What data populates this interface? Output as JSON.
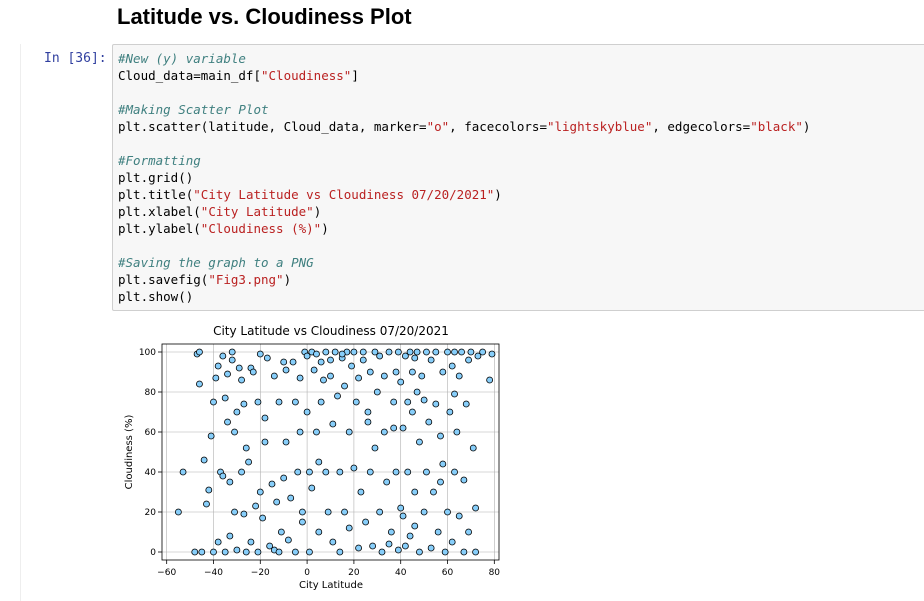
{
  "heading": "Latitude vs. Cloudiness Plot",
  "prompt": "In [36]:",
  "code": {
    "l1": "#New (y) variable",
    "l2a": "Cloud_data=main_df[",
    "l2s": "\"Cloudiness\"",
    "l2b": "]",
    "l3": "#Making Scatter Plot",
    "l4a": "plt.scatter(latitude, Cloud_data, marker=",
    "l4s1": "\"o\"",
    "l4b": ", facecolors=",
    "l4s2": "\"lightskyblue\"",
    "l4c": ", edgecolors=",
    "l4s3": "\"black\"",
    "l4d": ")",
    "l5": "#Formatting",
    "l6": "plt.grid()",
    "l7a": "plt.title(",
    "l7s": "\"City Latitude vs Cloudiness 07/20/2021\"",
    "l7b": ")",
    "l8a": "plt.xlabel(",
    "l8s": "\"City Latitude\"",
    "l8b": ")",
    "l9a": "plt.ylabel(",
    "l9s": "\"Cloudiness (%)\"",
    "l9b": ")",
    "l10": "#Saving the graph to a PNG",
    "l11a": "plt.savefig(",
    "l11s": "\"Fig3.png\"",
    "l11b": ")",
    "l12": "plt.show()"
  },
  "colors": {
    "marker_face": "#87cefa",
    "marker_edge": "#000000",
    "grid": "#b0b0b0"
  },
  "chart_data": {
    "type": "scatter",
    "title": "City Latitude vs Cloudiness 07/20/2021",
    "xlabel": "City Latitude",
    "ylabel": "Cloudiness (%)",
    "xlim": [
      -62,
      82
    ],
    "ylim": [
      -4,
      104
    ],
    "xticks": [
      -60,
      -40,
      -20,
      0,
      20,
      40,
      60,
      80
    ],
    "yticks": [
      0,
      20,
      40,
      60,
      80,
      100
    ],
    "grid": true,
    "points": [
      [
        -55,
        20
      ],
      [
        -53,
        40
      ],
      [
        -47,
        99
      ],
      [
        -46,
        100
      ],
      [
        -46,
        84
      ],
      [
        -45,
        0
      ],
      [
        -44,
        46
      ],
      [
        -43,
        24
      ],
      [
        -42,
        31
      ],
      [
        -41,
        58
      ],
      [
        -40,
        75
      ],
      [
        -40,
        0
      ],
      [
        -39,
        87
      ],
      [
        -38,
        93
      ],
      [
        -38,
        5
      ],
      [
        -37,
        40
      ],
      [
        -36,
        38
      ],
      [
        -36,
        98
      ],
      [
        -35,
        77
      ],
      [
        -35,
        0
      ],
      [
        -34,
        89
      ],
      [
        -34,
        65
      ],
      [
        -33,
        35
      ],
      [
        -33,
        8
      ],
      [
        -32,
        100
      ],
      [
        -32,
        96
      ],
      [
        -31,
        60
      ],
      [
        -31,
        20
      ],
      [
        -30,
        70
      ],
      [
        -30,
        1
      ],
      [
        -29,
        92
      ],
      [
        -28,
        86
      ],
      [
        -28,
        40
      ],
      [
        -27,
        19
      ],
      [
        -27,
        74
      ],
      [
        -26,
        0
      ],
      [
        -25,
        45
      ],
      [
        -24,
        92
      ],
      [
        -24,
        5
      ],
      [
        -23,
        90
      ],
      [
        -22,
        23
      ],
      [
        -21,
        75
      ],
      [
        -21,
        0
      ],
      [
        -20,
        30
      ],
      [
        -19,
        17
      ],
      [
        -18,
        55
      ],
      [
        -18,
        67
      ],
      [
        -17,
        97
      ],
      [
        -16,
        3
      ],
      [
        -15,
        34
      ],
      [
        -14,
        88
      ],
      [
        -14,
        1
      ],
      [
        -13,
        25
      ],
      [
        -12,
        75
      ],
      [
        -12,
        0
      ],
      [
        -11,
        10
      ],
      [
        -10,
        37
      ],
      [
        -9,
        91
      ],
      [
        -9,
        55
      ],
      [
        -8,
        6
      ],
      [
        -7,
        27
      ],
      [
        -6,
        95
      ],
      [
        -5,
        75
      ],
      [
        -5,
        0
      ],
      [
        -4,
        40
      ],
      [
        -3,
        60
      ],
      [
        -3,
        87
      ],
      [
        -2,
        20
      ],
      [
        -1,
        100
      ],
      [
        0,
        98
      ],
      [
        0,
        70
      ],
      [
        1,
        40
      ],
      [
        1,
        0
      ],
      [
        2,
        100
      ],
      [
        2,
        32
      ],
      [
        3,
        91
      ],
      [
        4,
        99
      ],
      [
        4,
        60
      ],
      [
        5,
        10
      ],
      [
        6,
        95
      ],
      [
        6,
        75
      ],
      [
        7,
        86
      ],
      [
        8,
        40
      ],
      [
        8,
        100
      ],
      [
        9,
        20
      ],
      [
        10,
        96
      ],
      [
        10,
        88
      ],
      [
        11,
        64
      ],
      [
        11,
        5
      ],
      [
        12,
        100
      ],
      [
        13,
        78
      ],
      [
        14,
        40
      ],
      [
        14,
        0
      ],
      [
        15,
        97
      ],
      [
        16,
        83
      ],
      [
        16,
        20
      ],
      [
        17,
        100
      ],
      [
        18,
        60
      ],
      [
        18,
        12
      ],
      [
        19,
        93
      ],
      [
        20,
        42
      ],
      [
        20,
        100
      ],
      [
        21,
        75
      ],
      [
        22,
        2
      ],
      [
        22,
        87
      ],
      [
        23,
        30
      ],
      [
        24,
        96
      ],
      [
        24,
        100
      ],
      [
        25,
        15
      ],
      [
        26,
        70
      ],
      [
        27,
        90
      ],
      [
        27,
        40
      ],
      [
        28,
        3
      ],
      [
        29,
        100
      ],
      [
        30,
        80
      ],
      [
        31,
        20
      ],
      [
        31,
        98
      ],
      [
        32,
        0
      ],
      [
        33,
        60
      ],
      [
        33,
        88
      ],
      [
        34,
        35
      ],
      [
        35,
        100
      ],
      [
        35,
        4
      ],
      [
        36,
        10
      ],
      [
        37,
        75
      ],
      [
        38,
        90
      ],
      [
        38,
        40
      ],
      [
        39,
        100
      ],
      [
        39,
        1
      ],
      [
        40,
        22
      ],
      [
        40,
        85
      ],
      [
        41,
        62
      ],
      [
        41,
        18
      ],
      [
        42,
        98
      ],
      [
        42,
        3
      ],
      [
        43,
        75
      ],
      [
        43,
        40
      ],
      [
        44,
        100
      ],
      [
        44,
        8
      ],
      [
        45,
        70
      ],
      [
        45,
        90
      ],
      [
        46,
        13
      ],
      [
        46,
        30
      ],
      [
        47,
        80
      ],
      [
        47,
        100
      ],
      [
        48,
        55
      ],
      [
        48,
        0
      ],
      [
        49,
        88
      ],
      [
        50,
        20
      ],
      [
        50,
        76
      ],
      [
        51,
        100
      ],
      [
        51,
        40
      ],
      [
        52,
        65
      ],
      [
        53,
        2
      ],
      [
        53,
        96
      ],
      [
        54,
        30
      ],
      [
        55,
        74
      ],
      [
        55,
        100
      ],
      [
        56,
        10
      ],
      [
        57,
        58
      ],
      [
        58,
        90
      ],
      [
        58,
        44
      ],
      [
        59,
        0
      ],
      [
        60,
        100
      ],
      [
        60,
        20
      ],
      [
        61,
        70
      ],
      [
        62,
        93
      ],
      [
        62,
        5
      ],
      [
        63,
        40
      ],
      [
        63,
        100
      ],
      [
        64,
        60
      ],
      [
        65,
        88
      ],
      [
        65,
        18
      ],
      [
        66,
        100
      ],
      [
        67,
        36
      ],
      [
        67,
        0
      ],
      [
        68,
        74
      ],
      [
        69,
        96
      ],
      [
        69,
        10
      ],
      [
        70,
        100
      ],
      [
        71,
        52
      ],
      [
        72,
        22
      ],
      [
        72,
        0
      ],
      [
        73,
        98
      ],
      [
        75,
        100
      ],
      [
        78,
        86
      ],
      [
        79,
        99
      ],
      [
        -48,
        0
      ],
      [
        -20,
        99
      ],
      [
        26,
        65
      ],
      [
        15,
        99
      ],
      [
        5,
        45
      ],
      [
        -10,
        95
      ],
      [
        37,
        62
      ],
      [
        46,
        97
      ],
      [
        57,
        35
      ],
      [
        63,
        79
      ],
      [
        -26,
        52
      ],
      [
        29,
        52
      ],
      [
        -2,
        15
      ]
    ]
  }
}
